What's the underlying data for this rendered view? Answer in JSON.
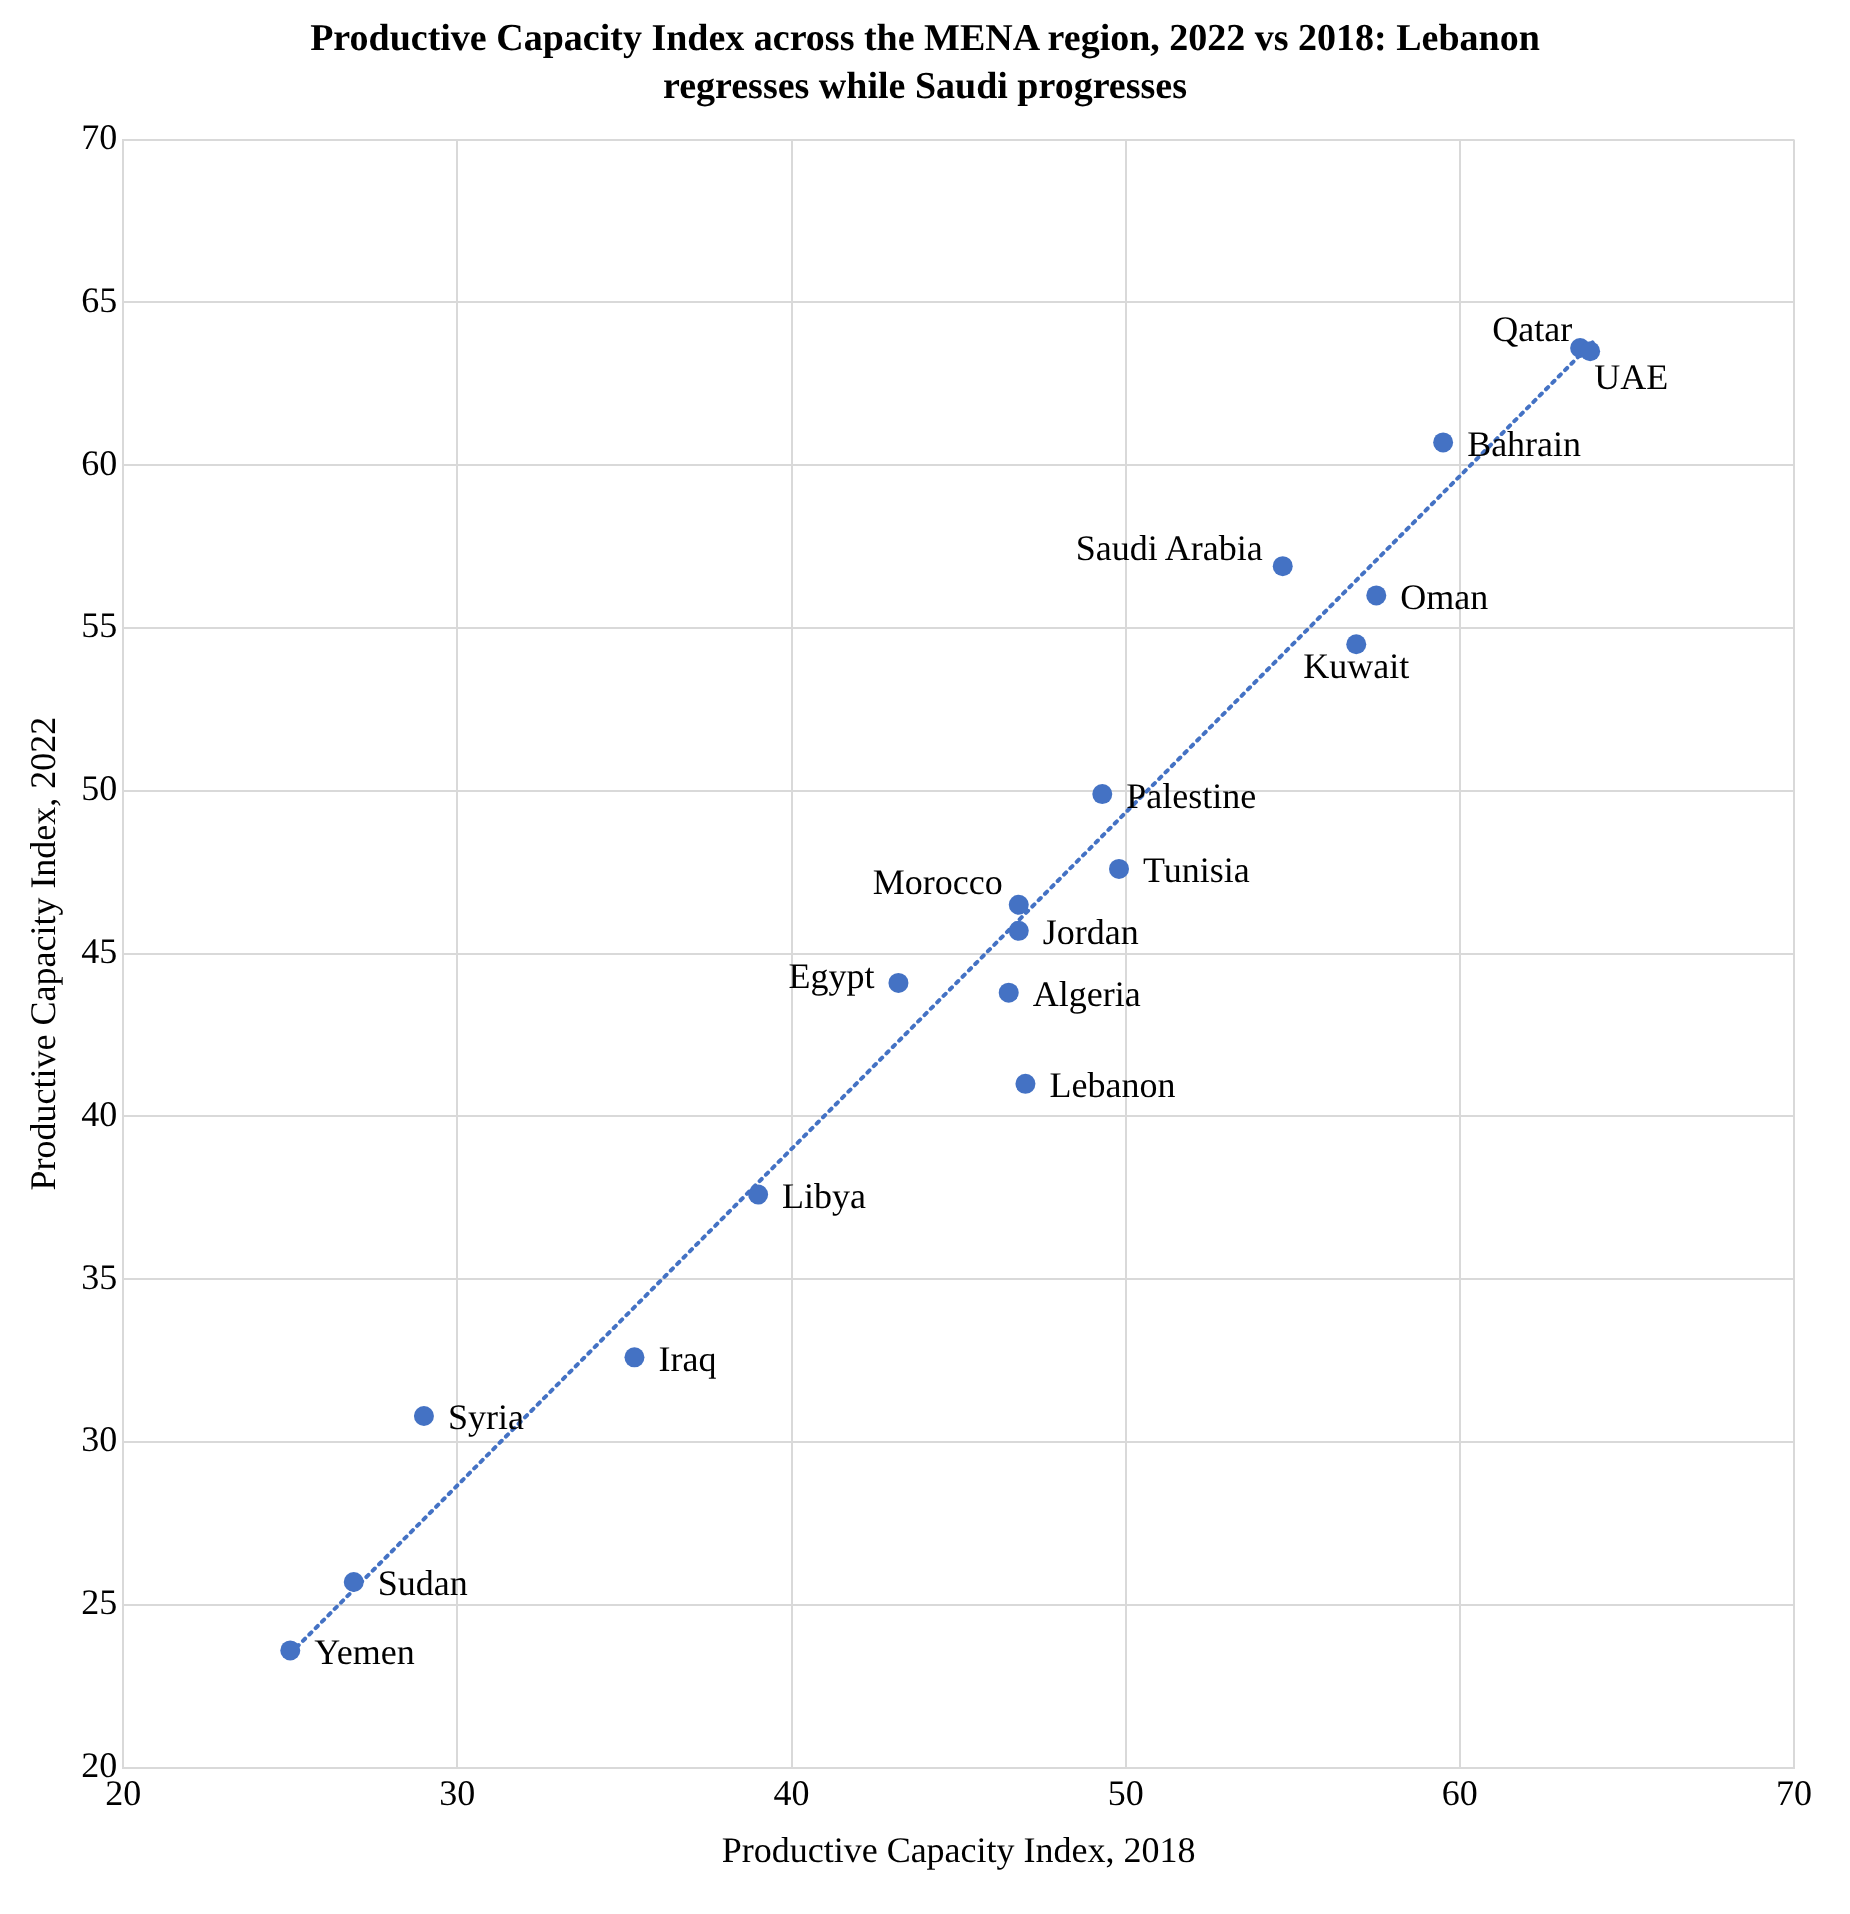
{
  "chart_data": {
    "type": "scatter",
    "title": "Productive Capacity Index across the MENA region, 2022 vs 2018: Lebanon regresses while Saudi progresses",
    "xlabel": "Productive Capacity Index, 2018",
    "ylabel": "Productive Capacity Index, 2022",
    "x": [
      25.0,
      26.9,
      29.0,
      35.3,
      39.0,
      43.2,
      46.5,
      47.0,
      46.8,
      46.8,
      49.8,
      49.3,
      54.7,
      57.5,
      56.9,
      59.5,
      63.6,
      63.9
    ],
    "series": [
      {
        "color": "#4472c4",
        "values": [
          23.6,
          25.7,
          30.8,
          32.6,
          37.6,
          44.1,
          43.8,
          41.0,
          45.7,
          46.5,
          47.6,
          49.9,
          56.9,
          56.0,
          54.5,
          60.7,
          63.6,
          63.5
        ]
      },
      {
        "type": "line",
        "x": [
          25,
          64
        ],
        "values": [
          23.5,
          63.8
        ],
        "color": "#4472c4",
        "line_style": "dotted",
        "marker": "none"
      }
    ],
    "annotations": [
      {
        "text": "Yemen",
        "x": 25.0,
        "y": 23.6
      },
      {
        "text": "Sudan",
        "x": 26.9,
        "y": 25.7
      },
      {
        "text": "Syria",
        "x": 29.0,
        "y": 30.8
      },
      {
        "text": "Iraq",
        "x": 35.3,
        "y": 32.6
      },
      {
        "text": "Libya",
        "x": 39.0,
        "y": 37.6
      },
      {
        "text": "Egypt",
        "x": 43.2,
        "y": 44.1
      },
      {
        "text": "Algeria",
        "x": 46.5,
        "y": 43.8
      },
      {
        "text": "Lebanon",
        "x": 47.0,
        "y": 41.0
      },
      {
        "text": "Jordan",
        "x": 46.8,
        "y": 45.7
      },
      {
        "text": "Morocco",
        "x": 46.8,
        "y": 46.5
      },
      {
        "text": "Tunisia",
        "x": 49.8,
        "y": 47.6
      },
      {
        "text": "Palestine",
        "x": 49.3,
        "y": 49.9
      },
      {
        "text": "Saudi Arabia",
        "x": 54.7,
        "y": 56.9
      },
      {
        "text": "Oman",
        "x": 57.5,
        "y": 56.0
      },
      {
        "text": "Kuwait",
        "x": 56.9,
        "y": 54.5
      },
      {
        "text": "Bahrain",
        "x": 59.5,
        "y": 60.7
      },
      {
        "text": "Qatar",
        "x": 63.6,
        "y": 63.6
      },
      {
        "text": "UAE",
        "x": 63.9,
        "y": 63.5
      }
    ],
    "xlim": [
      20,
      70
    ],
    "ylim": [
      20,
      70
    ],
    "xticks": [
      20,
      30,
      40,
      50,
      60,
      70
    ],
    "yticks": [
      20,
      25,
      30,
      35,
      40,
      45,
      50,
      55,
      60,
      65,
      70
    ],
    "grid": true,
    "legend": false,
    "marker": "circle"
  }
}
